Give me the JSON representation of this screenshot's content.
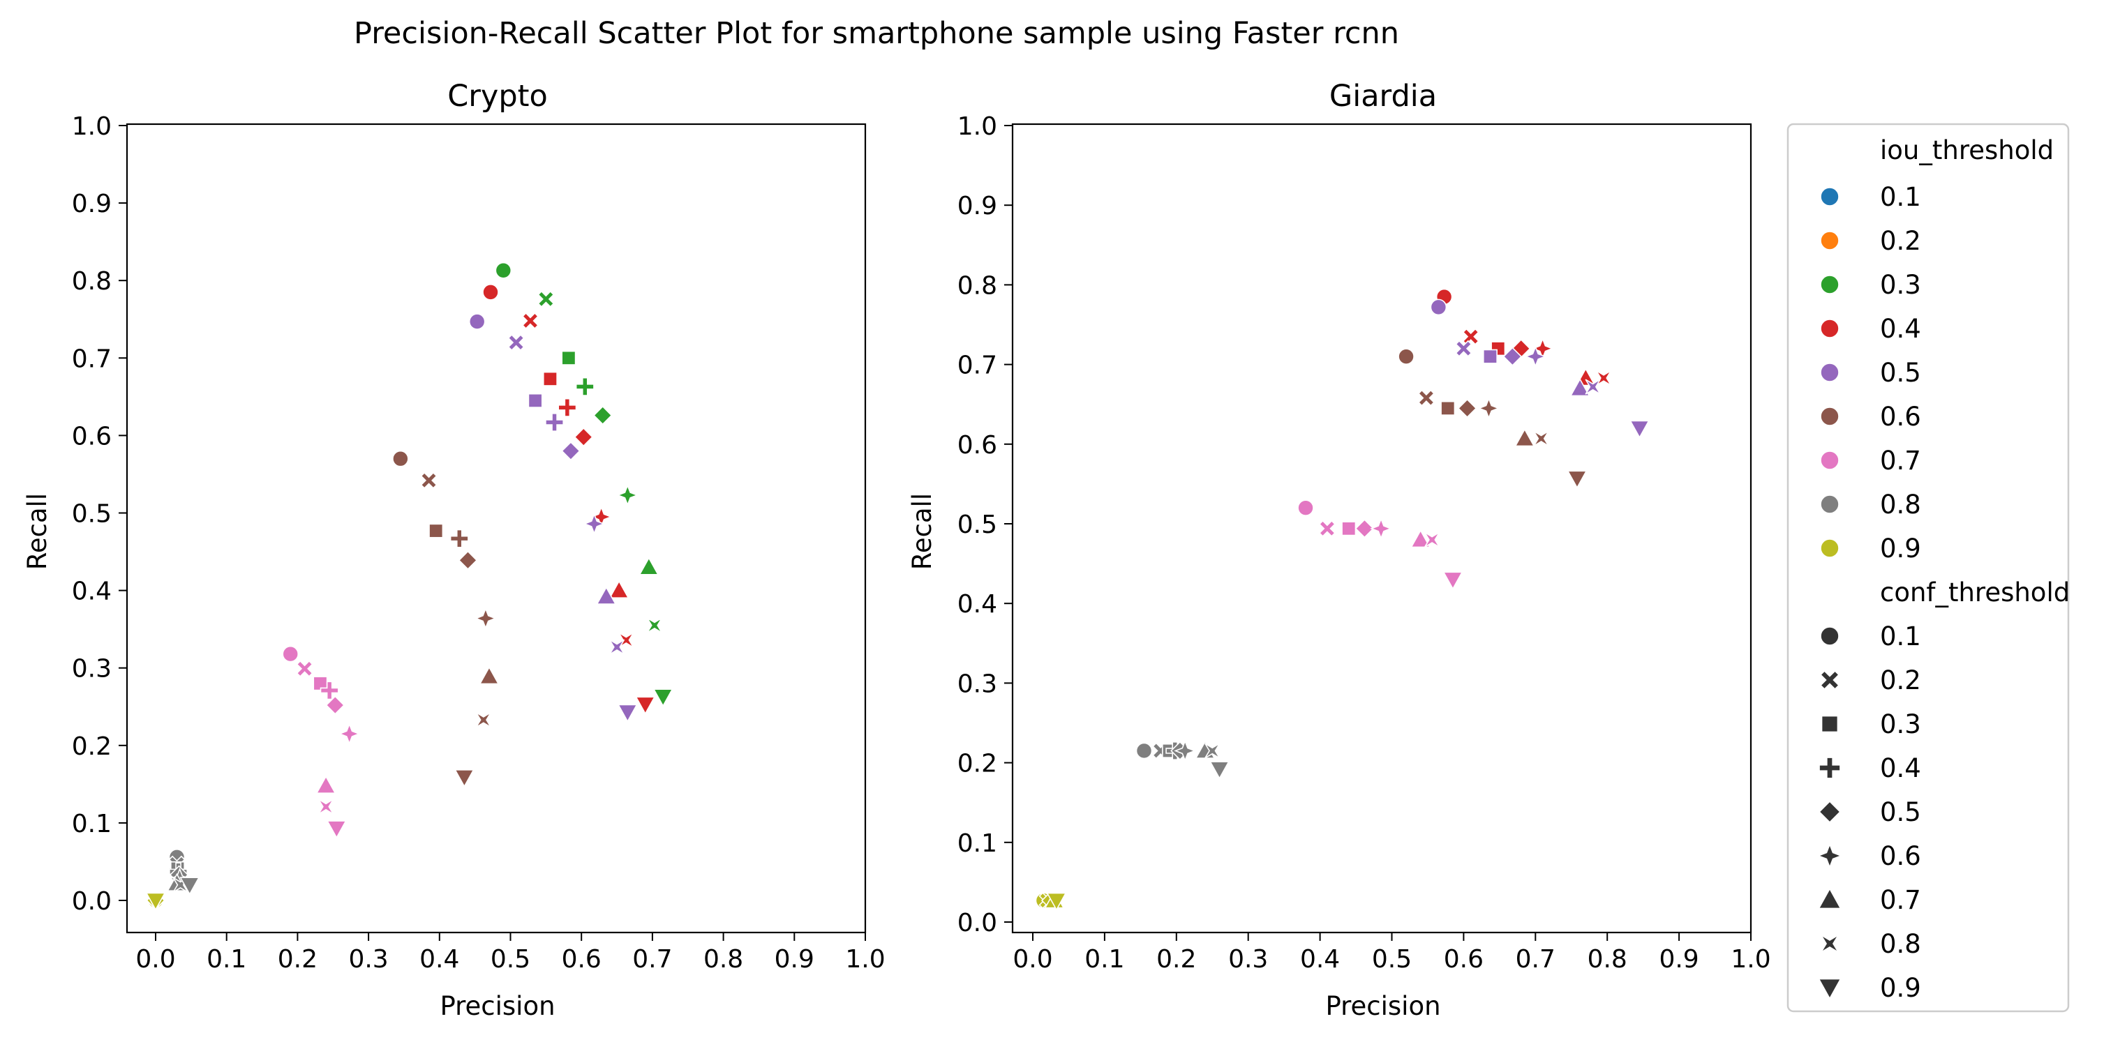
{
  "chart_data": {
    "type": "scatter",
    "title": "Precision-Recall Scatter Plot for smartphone sample using Faster rcnn",
    "xlim": [
      0,
      1.0
    ],
    "ylim": [
      0,
      1.0
    ],
    "xticks": [
      "0.0",
      "0.1",
      "0.2",
      "0.3",
      "0.4",
      "0.5",
      "0.6",
      "0.7",
      "0.8",
      "0.9",
      "1.0"
    ],
    "yticks": [
      "0.0",
      "0.1",
      "0.2",
      "0.3",
      "0.4",
      "0.5",
      "0.6",
      "0.7",
      "0.8",
      "0.9",
      "1.0"
    ],
    "grid": false,
    "legend": {
      "placement": "outside-right",
      "hue_title": "iou_threshold",
      "hue_levels": [
        "0.1",
        "0.2",
        "0.3",
        "0.4",
        "0.5",
        "0.6",
        "0.7",
        "0.8",
        "0.9"
      ],
      "style_title": "conf_threshold",
      "style_levels": [
        "0.1",
        "0.2",
        "0.3",
        "0.4",
        "0.5",
        "0.6",
        "0.7",
        "0.8",
        "0.9"
      ]
    },
    "iou_colors": {
      "0.1": "#1f77b4",
      "0.2": "#ff7f0e",
      "0.3": "#2ca02c",
      "0.4": "#d62728",
      "0.5": "#9467bd",
      "0.6": "#8c564b",
      "0.7": "#e377c2",
      "0.8": "#7f7f7f",
      "0.9": "#bcbd22"
    },
    "conf_markers": {
      "0.1": "circle",
      "0.2": "x",
      "0.3": "square",
      "0.4": "plus",
      "0.5": "diamond",
      "0.6": "star4",
      "0.7": "triangle-up",
      "0.8": "bowtie",
      "0.9": "triangle-down"
    },
    "panels": [
      {
        "title": "Crypto",
        "xlabel": "Precision",
        "ylabel": "Recall",
        "points": [
          {
            "iou": "0.3",
            "conf": "0.1",
            "x": 0.49,
            "y": 0.813
          },
          {
            "iou": "0.3",
            "conf": "0.2",
            "x": 0.55,
            "y": 0.776
          },
          {
            "iou": "0.3",
            "conf": "0.3",
            "x": 0.582,
            "y": 0.7
          },
          {
            "iou": "0.3",
            "conf": "0.4",
            "x": 0.605,
            "y": 0.663
          },
          {
            "iou": "0.3",
            "conf": "0.5",
            "x": 0.63,
            "y": 0.626
          },
          {
            "iou": "0.3",
            "conf": "0.6",
            "x": 0.665,
            "y": 0.523
          },
          {
            "iou": "0.3",
            "conf": "0.7",
            "x": 0.695,
            "y": 0.43
          },
          {
            "iou": "0.3",
            "conf": "0.8",
            "x": 0.703,
            "y": 0.355
          },
          {
            "iou": "0.3",
            "conf": "0.9",
            "x": 0.715,
            "y": 0.263
          },
          {
            "iou": "0.4",
            "conf": "0.1",
            "x": 0.472,
            "y": 0.785
          },
          {
            "iou": "0.4",
            "conf": "0.2",
            "x": 0.528,
            "y": 0.748
          },
          {
            "iou": "0.4",
            "conf": "0.3",
            "x": 0.556,
            "y": 0.673
          },
          {
            "iou": "0.4",
            "conf": "0.4",
            "x": 0.58,
            "y": 0.636
          },
          {
            "iou": "0.4",
            "conf": "0.5",
            "x": 0.603,
            "y": 0.598
          },
          {
            "iou": "0.4",
            "conf": "0.6",
            "x": 0.628,
            "y": 0.495
          },
          {
            "iou": "0.4",
            "conf": "0.7",
            "x": 0.653,
            "y": 0.4
          },
          {
            "iou": "0.4",
            "conf": "0.8",
            "x": 0.663,
            "y": 0.336
          },
          {
            "iou": "0.4",
            "conf": "0.9",
            "x": 0.69,
            "y": 0.253
          },
          {
            "iou": "0.5",
            "conf": "0.1",
            "x": 0.453,
            "y": 0.747
          },
          {
            "iou": "0.5",
            "conf": "0.2",
            "x": 0.508,
            "y": 0.72
          },
          {
            "iou": "0.5",
            "conf": "0.3",
            "x": 0.535,
            "y": 0.645
          },
          {
            "iou": "0.5",
            "conf": "0.4",
            "x": 0.562,
            "y": 0.617
          },
          {
            "iou": "0.5",
            "conf": "0.5",
            "x": 0.585,
            "y": 0.58
          },
          {
            "iou": "0.5",
            "conf": "0.6",
            "x": 0.618,
            "y": 0.486
          },
          {
            "iou": "0.5",
            "conf": "0.7",
            "x": 0.635,
            "y": 0.392
          },
          {
            "iou": "0.5",
            "conf": "0.8",
            "x": 0.65,
            "y": 0.327
          },
          {
            "iou": "0.5",
            "conf": "0.9",
            "x": 0.665,
            "y": 0.243
          },
          {
            "iou": "0.6",
            "conf": "0.1",
            "x": 0.345,
            "y": 0.57
          },
          {
            "iou": "0.6",
            "conf": "0.2",
            "x": 0.385,
            "y": 0.542
          },
          {
            "iou": "0.6",
            "conf": "0.3",
            "x": 0.395,
            "y": 0.477
          },
          {
            "iou": "0.6",
            "conf": "0.4",
            "x": 0.428,
            "y": 0.467
          },
          {
            "iou": "0.6",
            "conf": "0.5",
            "x": 0.44,
            "y": 0.439
          },
          {
            "iou": "0.6",
            "conf": "0.6",
            "x": 0.465,
            "y": 0.364
          },
          {
            "iou": "0.6",
            "conf": "0.7",
            "x": 0.47,
            "y": 0.289
          },
          {
            "iou": "0.6",
            "conf": "0.8",
            "x": 0.462,
            "y": 0.233
          },
          {
            "iou": "0.6",
            "conf": "0.9",
            "x": 0.435,
            "y": 0.159
          },
          {
            "iou": "0.7",
            "conf": "0.1",
            "x": 0.19,
            "y": 0.318
          },
          {
            "iou": "0.7",
            "conf": "0.2",
            "x": 0.21,
            "y": 0.299
          },
          {
            "iou": "0.7",
            "conf": "0.3",
            "x": 0.232,
            "y": 0.28
          },
          {
            "iou": "0.7",
            "conf": "0.4",
            "x": 0.245,
            "y": 0.271
          },
          {
            "iou": "0.7",
            "conf": "0.5",
            "x": 0.253,
            "y": 0.252
          },
          {
            "iou": "0.7",
            "conf": "0.6",
            "x": 0.273,
            "y": 0.215
          },
          {
            "iou": "0.7",
            "conf": "0.7",
            "x": 0.24,
            "y": 0.148
          },
          {
            "iou": "0.7",
            "conf": "0.8",
            "x": 0.24,
            "y": 0.121
          },
          {
            "iou": "0.7",
            "conf": "0.9",
            "x": 0.255,
            "y": 0.093
          },
          {
            "iou": "0.8",
            "conf": "0.1",
            "x": 0.03,
            "y": 0.056
          },
          {
            "iou": "0.8",
            "conf": "0.2",
            "x": 0.03,
            "y": 0.047
          },
          {
            "iou": "0.8",
            "conf": "0.3",
            "x": 0.031,
            "y": 0.041
          },
          {
            "iou": "0.8",
            "conf": "0.4",
            "x": 0.032,
            "y": 0.037
          },
          {
            "iou": "0.8",
            "conf": "0.5",
            "x": 0.033,
            "y": 0.033
          },
          {
            "iou": "0.8",
            "conf": "0.6",
            "x": 0.034,
            "y": 0.028
          },
          {
            "iou": "0.8",
            "conf": "0.7",
            "x": 0.03,
            "y": 0.022
          },
          {
            "iou": "0.8",
            "conf": "0.8",
            "x": 0.035,
            "y": 0.02
          },
          {
            "iou": "0.8",
            "conf": "0.9",
            "x": 0.048,
            "y": 0.02
          },
          {
            "iou": "0.9",
            "conf": "0.1",
            "x": 0.0,
            "y": 0.0
          },
          {
            "iou": "0.9",
            "conf": "0.5",
            "x": 0.0,
            "y": 0.0
          },
          {
            "iou": "0.9",
            "conf": "0.9",
            "x": 0.0,
            "y": 0.0
          }
        ]
      },
      {
        "title": "Giardia",
        "xlabel": "Precision",
        "ylabel": "Recall",
        "points": [
          {
            "iou": "0.4",
            "conf": "0.1",
            "x": 0.573,
            "y": 0.785
          },
          {
            "iou": "0.4",
            "conf": "0.2",
            "x": 0.61,
            "y": 0.735
          },
          {
            "iou": "0.4",
            "conf": "0.3",
            "x": 0.648,
            "y": 0.72
          },
          {
            "iou": "0.4",
            "conf": "0.5",
            "x": 0.68,
            "y": 0.72
          },
          {
            "iou": "0.4",
            "conf": "0.6",
            "x": 0.71,
            "y": 0.72
          },
          {
            "iou": "0.4",
            "conf": "0.7",
            "x": 0.77,
            "y": 0.683
          },
          {
            "iou": "0.4",
            "conf": "0.8",
            "x": 0.795,
            "y": 0.683
          },
          {
            "iou": "0.5",
            "conf": "0.1",
            "x": 0.565,
            "y": 0.772
          },
          {
            "iou": "0.5",
            "conf": "0.2",
            "x": 0.6,
            "y": 0.72
          },
          {
            "iou": "0.5",
            "conf": "0.3",
            "x": 0.637,
            "y": 0.71
          },
          {
            "iou": "0.5",
            "conf": "0.5",
            "x": 0.668,
            "y": 0.71
          },
          {
            "iou": "0.5",
            "conf": "0.6",
            "x": 0.7,
            "y": 0.71
          },
          {
            "iou": "0.5",
            "conf": "0.7",
            "x": 0.762,
            "y": 0.67
          },
          {
            "iou": "0.5",
            "conf": "0.8",
            "x": 0.78,
            "y": 0.672
          },
          {
            "iou": "0.5",
            "conf": "0.9",
            "x": 0.845,
            "y": 0.62
          },
          {
            "iou": "0.6",
            "conf": "0.1",
            "x": 0.52,
            "y": 0.71
          },
          {
            "iou": "0.6",
            "conf": "0.2",
            "x": 0.548,
            "y": 0.658
          },
          {
            "iou": "0.6",
            "conf": "0.3",
            "x": 0.578,
            "y": 0.645
          },
          {
            "iou": "0.6",
            "conf": "0.5",
            "x": 0.605,
            "y": 0.645
          },
          {
            "iou": "0.6",
            "conf": "0.6",
            "x": 0.635,
            "y": 0.645
          },
          {
            "iou": "0.6",
            "conf": "0.7",
            "x": 0.685,
            "y": 0.607
          },
          {
            "iou": "0.6",
            "conf": "0.8",
            "x": 0.708,
            "y": 0.607
          },
          {
            "iou": "0.6",
            "conf": "0.9",
            "x": 0.758,
            "y": 0.557
          },
          {
            "iou": "0.7",
            "conf": "0.1",
            "x": 0.38,
            "y": 0.52
          },
          {
            "iou": "0.7",
            "conf": "0.2",
            "x": 0.41,
            "y": 0.494
          },
          {
            "iou": "0.7",
            "conf": "0.3",
            "x": 0.44,
            "y": 0.494
          },
          {
            "iou": "0.7",
            "conf": "0.5",
            "x": 0.462,
            "y": 0.494
          },
          {
            "iou": "0.7",
            "conf": "0.6",
            "x": 0.485,
            "y": 0.494
          },
          {
            "iou": "0.7",
            "conf": "0.7",
            "x": 0.54,
            "y": 0.48
          },
          {
            "iou": "0.7",
            "conf": "0.8",
            "x": 0.556,
            "y": 0.48
          },
          {
            "iou": "0.7",
            "conf": "0.9",
            "x": 0.585,
            "y": 0.43
          },
          {
            "iou": "0.8",
            "conf": "0.1",
            "x": 0.155,
            "y": 0.215
          },
          {
            "iou": "0.8",
            "conf": "0.2",
            "x": 0.178,
            "y": 0.215
          },
          {
            "iou": "0.8",
            "conf": "0.3",
            "x": 0.19,
            "y": 0.215
          },
          {
            "iou": "0.8",
            "conf": "0.4",
            "x": 0.198,
            "y": 0.215
          },
          {
            "iou": "0.8",
            "conf": "0.5",
            "x": 0.205,
            "y": 0.215
          },
          {
            "iou": "0.8",
            "conf": "0.6",
            "x": 0.212,
            "y": 0.215
          },
          {
            "iou": "0.8",
            "conf": "0.7",
            "x": 0.24,
            "y": 0.215
          },
          {
            "iou": "0.8",
            "conf": "0.8",
            "x": 0.25,
            "y": 0.215
          },
          {
            "iou": "0.8",
            "conf": "0.9",
            "x": 0.26,
            "y": 0.192
          },
          {
            "iou": "0.9",
            "conf": "0.1",
            "x": 0.015,
            "y": 0.027
          },
          {
            "iou": "0.9",
            "conf": "0.2",
            "x": 0.02,
            "y": 0.027
          },
          {
            "iou": "0.9",
            "conf": "0.5",
            "x": 0.025,
            "y": 0.027
          },
          {
            "iou": "0.9",
            "conf": "0.7",
            "x": 0.03,
            "y": 0.027
          },
          {
            "iou": "0.9",
            "conf": "0.9",
            "x": 0.033,
            "y": 0.027
          }
        ]
      }
    ]
  }
}
